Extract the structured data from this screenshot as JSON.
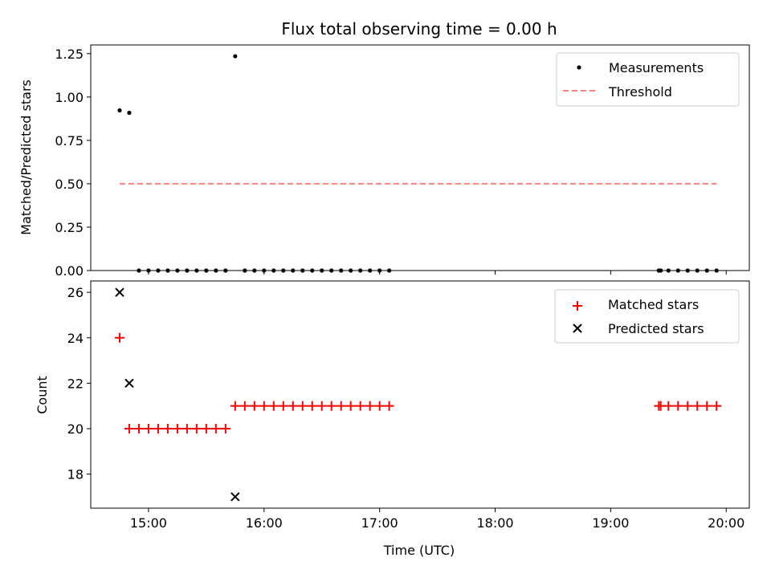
{
  "chart_data": [
    {
      "type": "scatter",
      "title": "Flux total observing time = 0.00 h",
      "xlabel": "",
      "ylabel": "Matched/Predicted stars",
      "xlim": [
        "14:30",
        "20:12"
      ],
      "ylim": [
        0,
        1.3
      ],
      "yticks": [
        0.0,
        0.25,
        0.5,
        0.75,
        1.0,
        1.25
      ],
      "ytick_labels": [
        "0.00",
        "0.25",
        "0.50",
        "0.75",
        "1.00",
        "1.25"
      ],
      "xticks": [
        "15:00",
        "16:00",
        "17:00",
        "18:00",
        "19:00",
        "20:00"
      ],
      "show_xtick_labels": false,
      "legend": {
        "position": "top-right",
        "entries": [
          "Measurements",
          "Threshold"
        ]
      },
      "series": [
        {
          "name": "Measurements",
          "marker": "dot",
          "color": "#000000",
          "points": [
            [
              "14:45",
              0.923
            ],
            [
              "14:50",
              0.909
            ],
            [
              "14:55",
              0
            ],
            [
              "15:00",
              0
            ],
            [
              "15:05",
              0
            ],
            [
              "15:10",
              0
            ],
            [
              "15:15",
              0
            ],
            [
              "15:20",
              0
            ],
            [
              "15:25",
              0
            ],
            [
              "15:30",
              0
            ],
            [
              "15:35",
              0
            ],
            [
              "15:40",
              0
            ],
            [
              "15:45",
              1.235
            ],
            [
              "15:50",
              0
            ],
            [
              "15:55",
              0
            ],
            [
              "16:00",
              0
            ],
            [
              "16:05",
              0
            ],
            [
              "16:10",
              0
            ],
            [
              "16:15",
              0
            ],
            [
              "16:20",
              0
            ],
            [
              "16:25",
              0
            ],
            [
              "16:30",
              0
            ],
            [
              "16:35",
              0
            ],
            [
              "16:40",
              0
            ],
            [
              "16:45",
              0
            ],
            [
              "16:50",
              0
            ],
            [
              "16:55",
              0
            ],
            [
              "17:00",
              0
            ],
            [
              "17:05",
              0
            ],
            [
              "19:25",
              0
            ],
            [
              "19:26",
              0
            ],
            [
              "19:30",
              0
            ],
            [
              "19:35",
              0
            ],
            [
              "19:40",
              0
            ],
            [
              "19:45",
              0
            ],
            [
              "19:50",
              0
            ],
            [
              "19:55",
              0
            ]
          ]
        },
        {
          "name": "Threshold",
          "style": "dashed",
          "color": "#ff7f7f",
          "points": [
            [
              "14:45",
              0.5
            ],
            [
              "19:55",
              0.5
            ]
          ]
        }
      ]
    },
    {
      "type": "scatter",
      "title": "",
      "xlabel": "Time (UTC)",
      "ylabel": "Count",
      "xlim": [
        "14:30",
        "20:12"
      ],
      "ylim": [
        16.5,
        26.5
      ],
      "yticks": [
        18,
        20,
        22,
        24,
        26
      ],
      "ytick_labels": [
        "18",
        "20",
        "22",
        "24",
        "26"
      ],
      "xticks": [
        "15:00",
        "16:00",
        "17:00",
        "18:00",
        "19:00",
        "20:00"
      ],
      "xtick_labels": [
        "15:00",
        "16:00",
        "17:00",
        "18:00",
        "19:00",
        "20:00"
      ],
      "legend": {
        "position": "top-right",
        "entries": [
          "Matched stars",
          "Predicted stars"
        ]
      },
      "series": [
        {
          "name": "Matched stars",
          "marker": "plus",
          "color": "#ff0000",
          "points": [
            [
              "14:45",
              24
            ],
            [
              "14:50",
              20
            ],
            [
              "14:55",
              20
            ],
            [
              "15:00",
              20
            ],
            [
              "15:05",
              20
            ],
            [
              "15:10",
              20
            ],
            [
              "15:15",
              20
            ],
            [
              "15:20",
              20
            ],
            [
              "15:25",
              20
            ],
            [
              "15:30",
              20
            ],
            [
              "15:35",
              20
            ],
            [
              "15:40",
              20
            ],
            [
              "15:45",
              21
            ],
            [
              "15:50",
              21
            ],
            [
              "15:55",
              21
            ],
            [
              "16:00",
              21
            ],
            [
              "16:05",
              21
            ],
            [
              "16:10",
              21
            ],
            [
              "16:15",
              21
            ],
            [
              "16:20",
              21
            ],
            [
              "16:25",
              21
            ],
            [
              "16:30",
              21
            ],
            [
              "16:35",
              21
            ],
            [
              "16:40",
              21
            ],
            [
              "16:45",
              21
            ],
            [
              "16:50",
              21
            ],
            [
              "16:55",
              21
            ],
            [
              "17:00",
              21
            ],
            [
              "17:05",
              21
            ],
            [
              "19:25",
              21
            ],
            [
              "19:26",
              21
            ],
            [
              "19:30",
              21
            ],
            [
              "19:35",
              21
            ],
            [
              "19:40",
              21
            ],
            [
              "19:45",
              21
            ],
            [
              "19:50",
              21
            ],
            [
              "19:55",
              21
            ]
          ]
        },
        {
          "name": "Predicted stars",
          "marker": "x",
          "color": "#000000",
          "points": [
            [
              "14:45",
              26
            ],
            [
              "14:50",
              22
            ],
            [
              "15:45",
              17
            ]
          ]
        }
      ]
    }
  ]
}
